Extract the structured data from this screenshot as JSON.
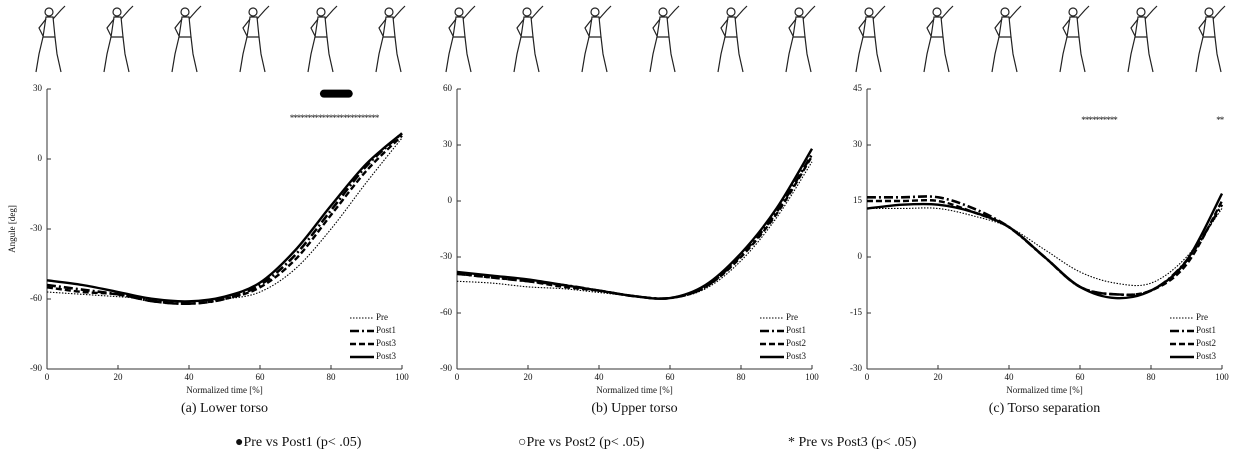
{
  "chart_data": [
    {
      "type": "line",
      "caption": "(a) Lower torso",
      "xlabel": "Normalized time [%]",
      "ylabel": "Angule [deg]",
      "x": [
        0,
        10,
        20,
        30,
        40,
        50,
        60,
        70,
        80,
        90,
        100
      ],
      "xlim": [
        0,
        100
      ],
      "xticks": [
        0,
        20,
        40,
        60,
        80,
        100
      ],
      "ylim": [
        -90,
        30
      ],
      "yticks": [
        -90,
        -60,
        -30,
        0,
        30
      ],
      "legend": "lower right",
      "series": [
        {
          "name": "Pre",
          "color": "#000000",
          "style": "dotted",
          "values": [
            -57,
            -58,
            -59,
            -60,
            -61,
            -60,
            -57,
            -47,
            -30,
            -10,
            9
          ]
        },
        {
          "name": "Post1",
          "color": "#000000",
          "style": "dashdot",
          "values": [
            -54,
            -56,
            -58,
            -61,
            -62,
            -60,
            -54,
            -41,
            -22,
            -3,
            11
          ]
        },
        {
          "name": "Post3",
          "color": "#000000",
          "style": "dashed",
          "values": [
            -55,
            -57,
            -58,
            -61,
            -62,
            -60,
            -55,
            -43,
            -24,
            -5,
            10
          ]
        },
        {
          "name": "Post3",
          "color": "#000000",
          "style": "solid",
          "values": [
            -52,
            -54,
            -57,
            -60,
            -61,
            -59,
            -53,
            -39,
            -20,
            -2,
            11
          ]
        }
      ],
      "significance": [
        {
          "symbol": "●",
          "x": [
            78,
            85
          ],
          "y": 28
        },
        {
          "symbol": "*",
          "x": [
            69,
            93
          ],
          "y": 18
        }
      ]
    },
    {
      "type": "line",
      "caption": "(b) Upper torso",
      "xlabel": "Normalized time [%]",
      "x": [
        0,
        10,
        20,
        30,
        40,
        50,
        60,
        70,
        80,
        90,
        100
      ],
      "xlim": [
        0,
        100
      ],
      "xticks": [
        0,
        20,
        40,
        60,
        80,
        100
      ],
      "ylim": [
        -90,
        60
      ],
      "yticks": [
        -90,
        -60,
        -30,
        0,
        30,
        60
      ],
      "legend": "lower right",
      "series": [
        {
          "name": "Pre",
          "color": "#000000",
          "style": "dotted",
          "values": [
            -43,
            -44,
            -46,
            -47,
            -49,
            -51,
            -52,
            -47,
            -32,
            -9,
            21
          ]
        },
        {
          "name": "Post1",
          "color": "#000000",
          "style": "dashdot",
          "values": [
            -39,
            -41,
            -43,
            -45,
            -48,
            -51,
            -52,
            -46,
            -29,
            -6,
            25
          ]
        },
        {
          "name": "Post2",
          "color": "#000000",
          "style": "dashed",
          "values": [
            -39,
            -41,
            -43,
            -46,
            -48,
            -51,
            -52,
            -46,
            -30,
            -7,
            24
          ]
        },
        {
          "name": "Post3",
          "color": "#000000",
          "style": "solid",
          "values": [
            -38,
            -40,
            -42,
            -45,
            -48,
            -51,
            -52,
            -45,
            -28,
            -4,
            28
          ]
        }
      ],
      "significance": []
    },
    {
      "type": "line",
      "caption": "(c) Torso separation",
      "xlabel": "Normalized time [%]",
      "x": [
        0,
        10,
        20,
        30,
        40,
        50,
        60,
        70,
        80,
        90,
        100
      ],
      "xlim": [
        0,
        100
      ],
      "xticks": [
        0,
        20,
        40,
        60,
        80,
        100
      ],
      "ylim": [
        -30,
        45
      ],
      "yticks": [
        -30,
        -15,
        0,
        15,
        30,
        45
      ],
      "legend": "lower right",
      "series": [
        {
          "name": "Pre",
          "color": "#000000",
          "style": "dotted",
          "values": [
            13,
            13,
            13,
            11,
            8,
            2,
            -4,
            -7,
            -7,
            0,
            13
          ]
        },
        {
          "name": "Post1",
          "color": "#000000",
          "style": "dashdot",
          "values": [
            16,
            16,
            16,
            13,
            8,
            0,
            -8,
            -10,
            -9,
            -1,
            14
          ]
        },
        {
          "name": "Post2",
          "color": "#000000",
          "style": "dashed",
          "values": [
            15,
            15,
            15,
            12,
            8,
            0,
            -8,
            -10,
            -9,
            -2,
            15
          ]
        },
        {
          "name": "Post3",
          "color": "#000000",
          "style": "solid",
          "values": [
            13,
            14,
            14,
            12,
            8,
            0,
            -8,
            -11,
            -9,
            -1,
            17
          ]
        }
      ],
      "significance": [
        {
          "symbol": "*",
          "x": [
            61,
            70
          ],
          "y": 37
        },
        {
          "symbol": "*",
          "x": [
            99,
            100
          ],
          "y": 37
        }
      ]
    }
  ],
  "figure_legend": [
    {
      "symbol": "●",
      "label": "Pre vs Post1 (p< .05)"
    },
    {
      "symbol": "○",
      "label": "Pre vs Post2 (p< .05)"
    },
    {
      "symbol": "*",
      "label": " Pre vs Post3 (p< .05)"
    }
  ]
}
